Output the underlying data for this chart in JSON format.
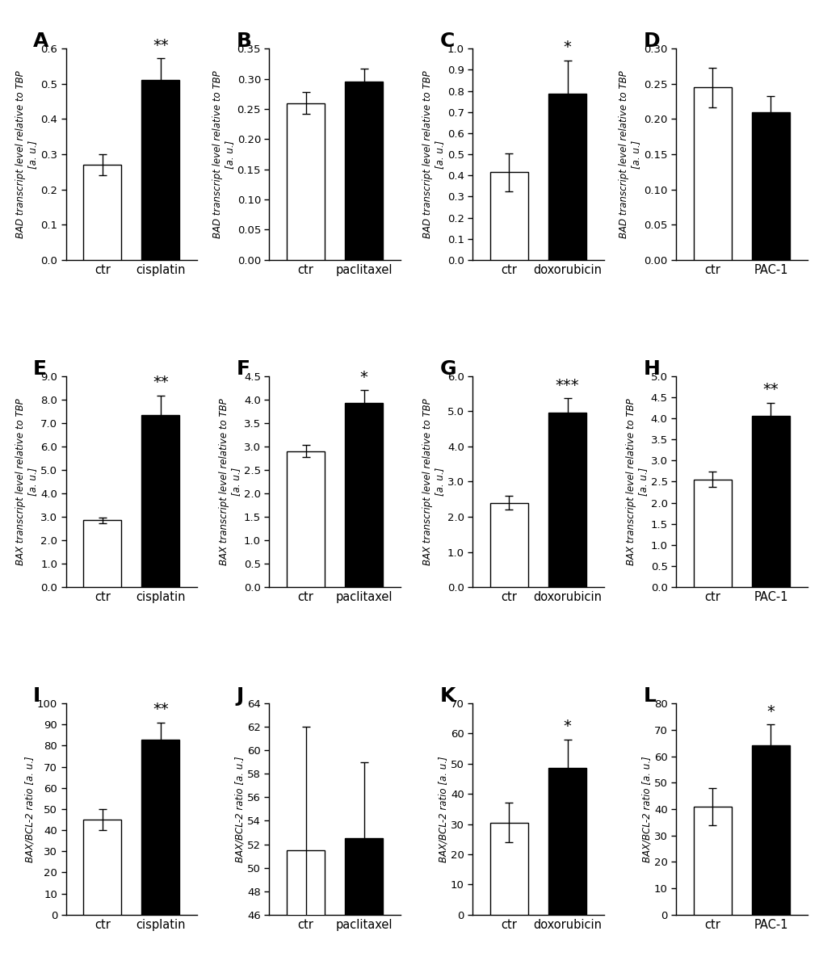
{
  "panels": [
    {
      "label": "A",
      "ylabel_gene": "BAD",
      "ylabel_rest": " transcript level relative to ",
      "ylabel_tbp": "TBP",
      "ylabel_unit": "\n[a. u.]",
      "ylabel_type": "transcript",
      "categories": [
        "ctr",
        "cisplatin"
      ],
      "values": [
        0.27,
        0.51
      ],
      "errors": [
        0.03,
        0.062
      ],
      "colors": [
        "white",
        "black"
      ],
      "ylim": [
        0.0,
        0.6
      ],
      "yticks": [
        0.0,
        0.1,
        0.2,
        0.3,
        0.4,
        0.5,
        0.6
      ],
      "yticklabels": [
        "0.0",
        "0.1",
        "0.2",
        "0.3",
        "0.4",
        "0.5",
        "0.6"
      ],
      "significance": "**",
      "sig_bar_idx": 1,
      "row": 0,
      "col": 0
    },
    {
      "label": "B",
      "ylabel_gene": "BAD",
      "ylabel_rest": " transcript level relative to ",
      "ylabel_tbp": "TBP",
      "ylabel_unit": "\n[a. u.]",
      "ylabel_type": "transcript",
      "categories": [
        "ctr",
        "paclitaxel"
      ],
      "values": [
        0.26,
        0.295
      ],
      "errors": [
        0.018,
        0.022
      ],
      "colors": [
        "white",
        "black"
      ],
      "ylim": [
        0.0,
        0.35
      ],
      "yticks": [
        0.0,
        0.05,
        0.1,
        0.15,
        0.2,
        0.25,
        0.3,
        0.35
      ],
      "yticklabels": [
        "0.00",
        "0.05",
        "0.10",
        "0.15",
        "0.20",
        "0.25",
        "0.30",
        "0.35"
      ],
      "significance": "",
      "sig_bar_idx": 1,
      "row": 0,
      "col": 1
    },
    {
      "label": "C",
      "ylabel_gene": "BAD",
      "ylabel_rest": " transcript level relative to ",
      "ylabel_tbp": "TBP",
      "ylabel_unit": "\n[a. u.]",
      "ylabel_type": "transcript",
      "categories": [
        "ctr",
        "doxorubicin"
      ],
      "values": [
        0.415,
        0.785
      ],
      "errors": [
        0.09,
        0.16
      ],
      "colors": [
        "white",
        "black"
      ],
      "ylim": [
        0.0,
        1.0
      ],
      "yticks": [
        0.0,
        0.1,
        0.2,
        0.3,
        0.4,
        0.5,
        0.6,
        0.7,
        0.8,
        0.9,
        1.0
      ],
      "yticklabels": [
        "0.0",
        "0.1",
        "0.2",
        "0.3",
        "0.4",
        "0.5",
        "0.6",
        "0.7",
        "0.8",
        "0.9",
        "1.0"
      ],
      "significance": "*",
      "sig_bar_idx": 1,
      "row": 0,
      "col": 2
    },
    {
      "label": "D",
      "ylabel_gene": "BAD",
      "ylabel_rest": " transcript level relative to ",
      "ylabel_tbp": "TBP",
      "ylabel_unit": "\n[a. u.]",
      "ylabel_type": "transcript",
      "categories": [
        "ctr",
        "PAC-1"
      ],
      "values": [
        0.245,
        0.21
      ],
      "errors": [
        0.028,
        0.023
      ],
      "colors": [
        "white",
        "black"
      ],
      "ylim": [
        0.0,
        0.3
      ],
      "yticks": [
        0.0,
        0.05,
        0.1,
        0.15,
        0.2,
        0.25,
        0.3
      ],
      "yticklabels": [
        "0.00",
        "0.05",
        "0.10",
        "0.15",
        "0.20",
        "0.25",
        "0.30"
      ],
      "significance": "",
      "sig_bar_idx": 1,
      "row": 0,
      "col": 3
    },
    {
      "label": "E",
      "ylabel_gene": "BAX",
      "ylabel_rest": " transcript level relative to ",
      "ylabel_tbp": "TBP",
      "ylabel_unit": "\n[a. u.]",
      "ylabel_type": "transcript",
      "categories": [
        "ctr",
        "cisplatin"
      ],
      "values": [
        2.85,
        7.35
      ],
      "errors": [
        0.12,
        0.82
      ],
      "colors": [
        "white",
        "black"
      ],
      "ylim": [
        0.0,
        9.0
      ],
      "yticks": [
        0.0,
        1.0,
        2.0,
        3.0,
        4.0,
        5.0,
        6.0,
        7.0,
        8.0,
        9.0
      ],
      "yticklabels": [
        "0.0",
        "1.0",
        "2.0",
        "3.0",
        "4.0",
        "5.0",
        "6.0",
        "7.0",
        "8.0",
        "9.0"
      ],
      "significance": "**",
      "sig_bar_idx": 1,
      "row": 1,
      "col": 0
    },
    {
      "label": "F",
      "ylabel_gene": "BAX",
      "ylabel_rest": " transcript level relative to ",
      "ylabel_tbp": "TBP",
      "ylabel_unit": "\n[a. u.]",
      "ylabel_type": "transcript",
      "categories": [
        "ctr",
        "paclitaxel"
      ],
      "values": [
        2.9,
        3.93
      ],
      "errors": [
        0.13,
        0.27
      ],
      "colors": [
        "white",
        "black"
      ],
      "ylim": [
        0.0,
        4.5
      ],
      "yticks": [
        0.0,
        0.5,
        1.0,
        1.5,
        2.0,
        2.5,
        3.0,
        3.5,
        4.0,
        4.5
      ],
      "yticklabels": [
        "0.0",
        "0.5",
        "1.0",
        "1.5",
        "2.0",
        "2.5",
        "3.0",
        "3.5",
        "4.0",
        "4.5"
      ],
      "significance": "*",
      "sig_bar_idx": 1,
      "row": 1,
      "col": 1
    },
    {
      "label": "G",
      "ylabel_gene": "BAX",
      "ylabel_rest": " transcript level relative to ",
      "ylabel_tbp": "TBP",
      "ylabel_unit": "\n[a. u.]",
      "ylabel_type": "transcript",
      "categories": [
        "ctr",
        "doxorubicin"
      ],
      "values": [
        2.4,
        4.95
      ],
      "errors": [
        0.2,
        0.42
      ],
      "colors": [
        "white",
        "black"
      ],
      "ylim": [
        0.0,
        6.0
      ],
      "yticks": [
        0.0,
        1.0,
        2.0,
        3.0,
        4.0,
        5.0,
        6.0
      ],
      "yticklabels": [
        "0.0",
        "1.0",
        "2.0",
        "3.0",
        "4.0",
        "5.0",
        "6.0"
      ],
      "significance": "***",
      "sig_bar_idx": 1,
      "row": 1,
      "col": 2
    },
    {
      "label": "H",
      "ylabel_gene": "BAX",
      "ylabel_rest": " transcript level relative to ",
      "ylabel_tbp": "TBP",
      "ylabel_unit": "\n[a. u.]",
      "ylabel_type": "transcript",
      "categories": [
        "ctr",
        "PAC-1"
      ],
      "values": [
        2.55,
        4.05
      ],
      "errors": [
        0.18,
        0.32
      ],
      "colors": [
        "white",
        "black"
      ],
      "ylim": [
        0.0,
        5.0
      ],
      "yticks": [
        0.0,
        0.5,
        1.0,
        1.5,
        2.0,
        2.5,
        3.0,
        3.5,
        4.0,
        4.5,
        5.0
      ],
      "yticklabels": [
        "0.0",
        "0.5",
        "1.0",
        "1.5",
        "2.0",
        "2.5",
        "3.0",
        "3.5",
        "4.0",
        "4.5",
        "5.0"
      ],
      "significance": "**",
      "sig_bar_idx": 1,
      "row": 1,
      "col": 3
    },
    {
      "label": "I",
      "ylabel_gene": "BAX/BCL-2",
      "ylabel_rest": " ratio [a. u.]",
      "ylabel_tbp": "",
      "ylabel_unit": "",
      "ylabel_type": "ratio",
      "categories": [
        "ctr",
        "cisplatin"
      ],
      "values": [
        45.0,
        83.0
      ],
      "errors": [
        5.0,
        8.0
      ],
      "colors": [
        "white",
        "black"
      ],
      "ylim": [
        0,
        100
      ],
      "yticks": [
        0,
        10,
        20,
        30,
        40,
        50,
        60,
        70,
        80,
        90,
        100
      ],
      "yticklabels": [
        "0",
        "10",
        "20",
        "30",
        "40",
        "50",
        "60",
        "70",
        "80",
        "90",
        "100"
      ],
      "significance": "**",
      "sig_bar_idx": 1,
      "row": 2,
      "col": 0
    },
    {
      "label": "J",
      "ylabel_gene": "BAX/BCL-2",
      "ylabel_rest": " ratio [a. u.]",
      "ylabel_tbp": "",
      "ylabel_unit": "",
      "ylabel_type": "ratio",
      "categories": [
        "ctr",
        "paclitaxel"
      ],
      "values": [
        51.5,
        52.5
      ],
      "errors": [
        10.5,
        6.5
      ],
      "colors": [
        "white",
        "black"
      ],
      "ylim": [
        46,
        64
      ],
      "yticks": [
        46,
        48,
        50,
        52,
        54,
        56,
        58,
        60,
        62,
        64
      ],
      "yticklabels": [
        "46",
        "48",
        "50",
        "52",
        "54",
        "56",
        "58",
        "60",
        "62",
        "64"
      ],
      "significance": "",
      "sig_bar_idx": 1,
      "row": 2,
      "col": 1
    },
    {
      "label": "K",
      "ylabel_gene": "BAX/BCL-2",
      "ylabel_rest": " ratio [a. u.]",
      "ylabel_tbp": "",
      "ylabel_unit": "",
      "ylabel_type": "ratio",
      "categories": [
        "ctr",
        "doxorubicin"
      ],
      "values": [
        30.5,
        48.5
      ],
      "errors": [
        6.5,
        9.5
      ],
      "colors": [
        "white",
        "black"
      ],
      "ylim": [
        0,
        70
      ],
      "yticks": [
        0,
        10,
        20,
        30,
        40,
        50,
        60,
        70
      ],
      "yticklabels": [
        "0",
        "10",
        "20",
        "30",
        "40",
        "50",
        "60",
        "70"
      ],
      "significance": "*",
      "sig_bar_idx": 1,
      "row": 2,
      "col": 2
    },
    {
      "label": "L",
      "ylabel_gene": "BAX/BCL-2",
      "ylabel_rest": " ratio [a. u.]",
      "ylabel_tbp": "",
      "ylabel_unit": "",
      "ylabel_type": "ratio",
      "categories": [
        "ctr",
        "PAC-1"
      ],
      "values": [
        41.0,
        64.0
      ],
      "errors": [
        7.0,
        8.0
      ],
      "colors": [
        "white",
        "black"
      ],
      "ylim": [
        0,
        80
      ],
      "yticks": [
        0,
        10,
        20,
        30,
        40,
        50,
        60,
        70,
        80
      ],
      "yticklabels": [
        "0",
        "10",
        "20",
        "30",
        "40",
        "50",
        "60",
        "70",
        "80"
      ],
      "significance": "*",
      "sig_bar_idx": 1,
      "row": 2,
      "col": 3
    }
  ],
  "bar_width": 0.52,
  "positions": [
    0.6,
    1.4
  ],
  "xlim": [
    0.1,
    1.9
  ],
  "figsize": [
    10.2,
    12.05
  ],
  "dpi": 100,
  "background_color": "#ffffff",
  "label_fontsize": 18,
  "tick_fontsize": 9.5,
  "ylabel_fontsize": 8.5,
  "sig_fontsize": 14,
  "xtick_fontsize": 10.5
}
